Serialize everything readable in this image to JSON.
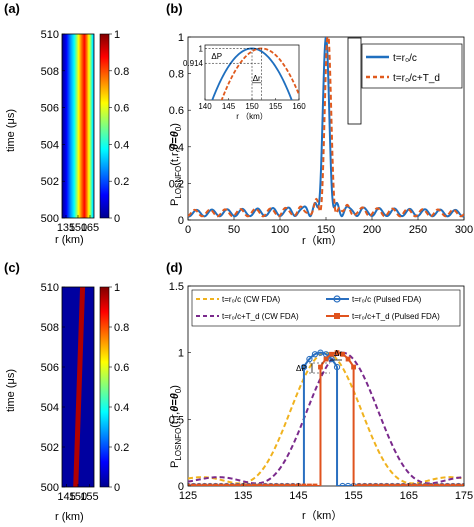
{
  "chart_data": [
    {
      "panel": "(a)",
      "type": "heatmap",
      "xlabel": "r (km)",
      "ylabel": "time (μs)",
      "x_ticks": [
        "135",
        "150",
        "165"
      ],
      "y_ticks": [
        "500",
        "502",
        "504",
        "506",
        "508",
        "510"
      ],
      "xlim": [
        130,
        170
      ],
      "ylim": [
        500,
        510
      ],
      "peak": {
        "r_start": 150,
        "r_end": 150
      },
      "colorbar_ticks": [
        "0",
        "0.2",
        "0.4",
        "0.6",
        "0.8",
        "1"
      ]
    },
    {
      "panel": "(b)",
      "type": "line",
      "xlabel": "r（km）",
      "ylabel": "P",
      "ylabel_sub": "LOSNFO",
      "ylabel_args": "(t,r,",
      "ylabel_theta": "θ=θ",
      "ylabel_theta_sub": "0",
      "ylabel_end": ")",
      "xlim": [
        0,
        300
      ],
      "ylim": [
        0,
        1
      ],
      "x_ticks": [
        "0",
        "50",
        "100",
        "150",
        "200",
        "250",
        "300"
      ],
      "y_ticks": [
        "0",
        "0.2",
        "0.4",
        "0.6",
        "0.8",
        "1"
      ],
      "legend_placement": "top-right",
      "series": [
        {
          "name": "t=r₀/c",
          "color": "#1f6fbf",
          "dash": "solid",
          "peak": 150,
          "delta": 0
        },
        {
          "name": "t=r₀/c+T_d",
          "color": "#e05a1e",
          "dash": "dashed",
          "peak": 152,
          "delta": 0.8
        }
      ],
      "inset": {
        "xlim": [
          140,
          160
        ],
        "ylim": [
          0.7,
          1.02
        ],
        "x_ticks": [
          "140",
          "145",
          "150",
          "155",
          "160"
        ],
        "y_ticks": [
          "0.914",
          "1"
        ],
        "xlabel": "r （km）",
        "annotations": [
          "ΔP",
          "Δr"
        ]
      }
    },
    {
      "panel": "(c)",
      "type": "heatmap",
      "xlabel": "r (km)",
      "ylabel": "time (μs)",
      "x_ticks": [
        "145",
        "150",
        "155"
      ],
      "y_ticks": [
        "500",
        "502",
        "504",
        "506",
        "508",
        "510"
      ],
      "xlim": [
        143,
        157
      ],
      "ylim": [
        500,
        510
      ],
      "peak": {
        "r_start": 149,
        "r_end": 152
      },
      "colorbar_ticks": [
        "0",
        "0.2",
        "0.4",
        "0.6",
        "0.8",
        "1"
      ]
    },
    {
      "panel": "(d)",
      "type": "line",
      "xlabel": "r（km）",
      "ylabel": "P",
      "ylabel_sub": "LOSNFO",
      "ylabel_args": "(t,r,",
      "ylabel_theta": "θ=θ",
      "ylabel_theta_sub": "0",
      "ylabel_end": ")",
      "xlim": [
        125,
        175
      ],
      "ylim": [
        0,
        1.5
      ],
      "x_ticks": [
        "125",
        "135",
        "145",
        "155",
        "165",
        "175"
      ],
      "y_ticks": [
        "0",
        "0.5",
        "1",
        "1.5"
      ],
      "annotations": [
        "ΔP",
        "Δr"
      ],
      "series": [
        {
          "name": "t=r₀/c (CW FDA)",
          "color": "#f0b21e",
          "style": "dashed",
          "kind": "cw",
          "peak": 150,
          "width": 11
        },
        {
          "name": "t=r₀/c+T_d (CW FDA)",
          "color": "#7a2a8c",
          "style": "dashed",
          "kind": "cw",
          "peak": 153,
          "width": 11
        },
        {
          "name": "t=r₀/c (Pulsed FDA)",
          "color": "#2a6fc0",
          "style": "solid-circle",
          "kind": "pulse",
          "peak": 149,
          "halfw": 3
        },
        {
          "name": "t=r₀/c+T_d (Pulsed FDA)",
          "color": "#e0531e",
          "style": "solid-square",
          "kind": "pulse",
          "peak": 152,
          "halfw": 3
        }
      ]
    }
  ]
}
